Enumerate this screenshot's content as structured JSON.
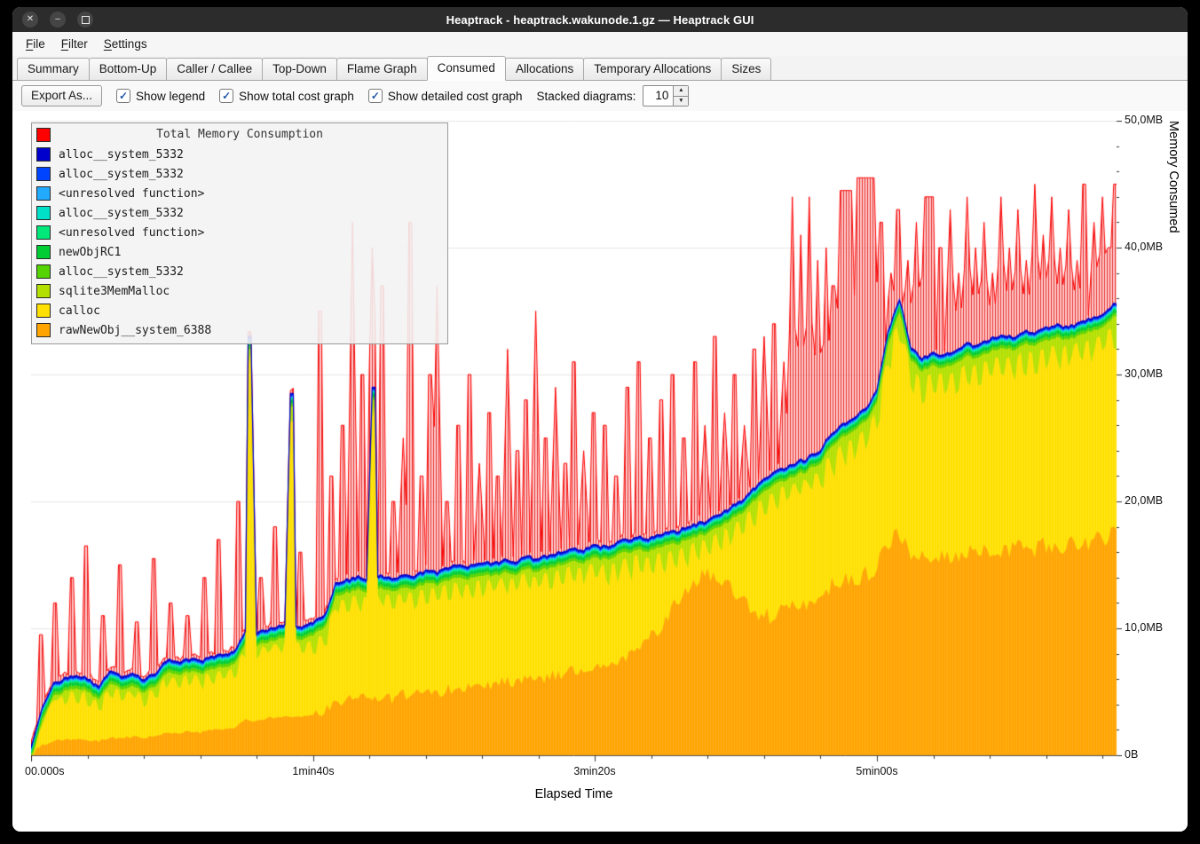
{
  "window": {
    "title": "Heaptrack - heaptrack.wakunode.1.gz — Heaptrack GUI",
    "controls": {
      "close": "✕",
      "minimize": "–"
    }
  },
  "menu": {
    "items": [
      {
        "key": "F",
        "post": "ile"
      },
      {
        "key": "F",
        "post": "ilter"
      },
      {
        "key": "S",
        "post": "ettings"
      }
    ]
  },
  "tabs": {
    "items": [
      "Summary",
      "Bottom-Up",
      "Caller / Callee",
      "Top-Down",
      "Flame Graph",
      "Consumed",
      "Allocations",
      "Temporary Allocations",
      "Sizes"
    ],
    "active": "Consumed"
  },
  "toolbar": {
    "export_label": "Export As...",
    "check_glyph": "✓",
    "spin_up": "▲",
    "spin_down": "▼",
    "checkboxes": [
      {
        "label": "Show legend",
        "checked": true
      },
      {
        "label": "Show total cost graph",
        "checked": true
      },
      {
        "label": "Show detailed cost graph",
        "checked": true
      }
    ],
    "stacked_label": "Stacked diagrams:",
    "stacked_value": "10"
  },
  "chart": {
    "x_label": "Elapsed Time",
    "y_label": "Memory Consumed",
    "y_ticks": [
      {
        "label": "50,0MB",
        "mb": 50
      },
      {
        "label": "40,0MB",
        "mb": 40
      },
      {
        "label": "30,0MB",
        "mb": 30
      },
      {
        "label": "20,0MB",
        "mb": 20
      },
      {
        "label": "10,0MB",
        "mb": 10
      },
      {
        "label": "0B",
        "mb": 0
      }
    ],
    "x_ticks": [
      {
        "label": "00.000s",
        "t": 0
      },
      {
        "label": "1min40s",
        "t": 100
      },
      {
        "label": "3min20s",
        "t": 200
      },
      {
        "label": "5min00s",
        "t": 300
      }
    ],
    "legend": {
      "title": "Total Memory Consumption",
      "title_color": "#ff0000",
      "items": [
        {
          "label": "alloc__system_5332",
          "color": "#0000cc"
        },
        {
          "label": "alloc__system_5332",
          "color": "#0044ff"
        },
        {
          "label": "<unresolved function>",
          "color": "#22aaff"
        },
        {
          "label": "alloc__system_5332",
          "color": "#00e0c8"
        },
        {
          "label": "<unresolved function>",
          "color": "#00e87a"
        },
        {
          "label": "newObjRC1",
          "color": "#00cc33"
        },
        {
          "label": "alloc__system_5332",
          "color": "#55d400"
        },
        {
          "label": "sqlite3MemMalloc",
          "color": "#b4e000"
        },
        {
          "label": "calloc",
          "color": "#ffe000"
        },
        {
          "label": "rawNewObj__system_6388",
          "color": "#ffa400"
        }
      ]
    }
  },
  "chart_data": {
    "type": "area",
    "stacked": true,
    "xlabel": "Elapsed Time",
    "ylabel": "Memory Consumed",
    "ylim_mb": [
      0,
      50
    ],
    "x_max": 385,
    "y_max_mb": 50,
    "x_step": 4,
    "total_color": "#ff0000",
    "sqlite_color": "#b4e000",
    "calloc_color": "#ffe000",
    "rawnewobj_color": "#ffa400",
    "total_baseline_extra_mb": 0.2,
    "thin_bands_top_to_bottom": [
      {
        "name": "alloc__system_5332",
        "color": "#0000cc",
        "mb": 0.12
      },
      {
        "name": "alloc__system_5332",
        "color": "#0044ff",
        "mb": 0.1
      },
      {
        "name": "<unresolved function>",
        "color": "#22aaff",
        "mb": 0.08
      },
      {
        "name": "alloc__system_5332",
        "color": "#00e0c8",
        "mb": 0.08
      },
      {
        "name": "<unresolved function>",
        "color": "#00e87a",
        "mb": 0.12
      },
      {
        "name": "newObjRC1",
        "color": "#00cc33",
        "mb": 0.25
      },
      {
        "name": "alloc__system_5332",
        "color": "#55d400",
        "mb": 0.25
      }
    ],
    "stack_top_mb": [
      0.6,
      3.8,
      5.6,
      6.1,
      6.3,
      6.0,
      5.5,
      6.6,
      6.2,
      6.5,
      6.0,
      6.4,
      7.5,
      7.3,
      7.6,
      7.4,
      7.7,
      7.9,
      8.1,
      9.8,
      9.6,
      9.9,
      10.1,
      10.3,
      10.2,
      10.5,
      10.9,
      13.5,
      13.8,
      14.0,
      13.7,
      14.1,
      13.9,
      14.3,
      14.2,
      14.5,
      14.4,
      14.8,
      15.0,
      14.9,
      15.2,
      15.1,
      15.4,
      15.3,
      15.6,
      15.5,
      15.8,
      16.0,
      16.3,
      16.2,
      16.5,
      16.4,
      16.8,
      17.0,
      17.2,
      17.1,
      17.4,
      17.6,
      17.9,
      18.2,
      18.5,
      18.9,
      19.5,
      20.1,
      20.9,
      21.7,
      22.3,
      22.7,
      23.1,
      23.5,
      24.1,
      25.4,
      26.1,
      26.7,
      27.3,
      28.8,
      33.4,
      36.0,
      32.2,
      31.3,
      31.7,
      31.5,
      32.0,
      32.4,
      32.2,
      32.8,
      33.1,
      32.9,
      33.4,
      33.3,
      33.7,
      33.9,
      33.7,
      34.1,
      34.4,
      34.7,
      35.5
    ],
    "rawnewobj_mb": [
      0.2,
      0.8,
      1.1,
      1.2,
      1.3,
      1.2,
      1.1,
      1.4,
      1.3,
      1.5,
      1.4,
      1.5,
      1.8,
      1.7,
      1.9,
      1.8,
      2.0,
      2.1,
      2.2,
      2.8,
      2.7,
      2.9,
      3.0,
      3.1,
      3.0,
      3.2,
      3.4,
      4.2,
      4.4,
      4.6,
      4.4,
      4.7,
      4.5,
      4.8,
      4.7,
      5.0,
      4.9,
      5.2,
      5.4,
      5.3,
      5.6,
      5.5,
      5.8,
      5.7,
      6.0,
      5.9,
      6.2,
      6.4,
      6.7,
      6.6,
      6.9,
      6.8,
      7.2,
      7.8,
      8.5,
      9.5,
      10.5,
      11.8,
      13.0,
      13.8,
      14.2,
      14.0,
      13.0,
      12.0,
      11.2,
      10.9,
      11.2,
      11.5,
      11.8,
      12.1,
      12.5,
      13.3,
      13.6,
      13.9,
      14.2,
      14.9,
      16.9,
      17.8,
      15.9,
      15.4,
      15.6,
      15.5,
      15.7,
      15.9,
      15.8,
      16.1,
      16.2,
      16.1,
      16.4,
      16.3,
      16.5,
      16.6,
      16.5,
      16.7,
      16.9,
      17.0,
      17.4
    ],
    "sqlite_tooth_base_mb": [
      0.4,
      0.4,
      0.4,
      1.0,
      1.0,
      1.0,
      1.0,
      1.0,
      1.0,
      1.0,
      1.0,
      1.0,
      1.0,
      1.0,
      1.0,
      1.0,
      1.0,
      1.0,
      1.0,
      1.0,
      1.0,
      1.0,
      1.0,
      1.0,
      1.0,
      1.4,
      1.4,
      1.4,
      1.4,
      1.4,
      1.4,
      1.4,
      1.4,
      1.4,
      1.4,
      1.4,
      1.4,
      1.4,
      1.4,
      1.4,
      1.4,
      1.4,
      1.4,
      1.4,
      1.4,
      1.4,
      1.4,
      1.4,
      1.4,
      1.4,
      1.8,
      1.8,
      1.8,
      1.8,
      1.8,
      1.8,
      1.8,
      1.8,
      1.8,
      1.8,
      1.8,
      1.8,
      1.8,
      1.8,
      1.8,
      1.8,
      1.8,
      1.8,
      1.8,
      1.8,
      2.1,
      2.1,
      2.1,
      2.1,
      2.1,
      2.1,
      2.1,
      2.1,
      2.1,
      2.1,
      2.1,
      2.1,
      2.1,
      2.1,
      2.1,
      2.1,
      2.1,
      2.1,
      2.1,
      2.1,
      2.1,
      2.1,
      2.1,
      2.1,
      2.1,
      2.1,
      2.1
    ],
    "stack_spikes": [
      [
        77,
        78.5,
        33
      ],
      [
        91.5,
        93,
        28.5
      ],
      [
        120.5,
        122,
        29
      ]
    ],
    "total_spikes": [
      [
        3,
        4,
        9.5
      ],
      [
        8,
        9,
        12
      ],
      [
        14,
        15,
        14
      ],
      [
        19,
        20,
        16.5
      ],
      [
        25,
        26,
        11
      ],
      [
        31,
        32,
        15
      ],
      [
        37,
        38,
        10.5
      ],
      [
        43,
        44,
        15.5
      ],
      [
        49,
        50,
        12
      ],
      [
        55,
        56,
        11
      ],
      [
        61,
        62,
        14
      ],
      [
        66,
        67,
        17
      ],
      [
        73,
        74,
        20
      ],
      [
        81,
        82,
        14
      ],
      [
        86,
        87,
        18
      ],
      [
        95,
        96,
        16
      ],
      [
        102,
        103,
        35
      ],
      [
        106,
        107,
        22
      ],
      [
        110,
        111,
        26
      ],
      [
        113.5,
        114.5,
        42
      ],
      [
        117,
        118,
        30
      ],
      [
        120.5,
        121.5,
        40
      ],
      [
        124,
        125,
        37
      ],
      [
        128,
        129,
        20
      ],
      [
        131.5,
        132.5,
        25
      ],
      [
        134,
        135,
        42
      ],
      [
        138,
        139,
        22
      ],
      [
        141,
        142,
        30
      ],
      [
        143.5,
        144.5,
        37
      ],
      [
        147,
        148,
        20
      ],
      [
        151,
        152,
        26
      ],
      [
        155,
        156,
        30
      ],
      [
        158.5,
        159.5,
        23
      ],
      [
        162,
        163,
        27
      ],
      [
        165,
        166,
        22
      ],
      [
        168.5,
        169.5,
        32
      ],
      [
        172,
        173,
        24
      ],
      [
        175,
        176,
        28
      ],
      [
        178.5,
        179.5,
        35
      ],
      [
        182,
        183,
        25
      ],
      [
        185.5,
        186.5,
        29
      ],
      [
        189,
        190,
        23
      ],
      [
        192,
        193,
        31
      ],
      [
        195.5,
        196.5,
        24
      ],
      [
        199,
        200,
        27
      ],
      [
        203,
        204,
        26
      ],
      [
        207,
        208,
        22
      ],
      [
        211,
        212,
        29
      ],
      [
        215,
        216,
        31
      ],
      [
        219,
        220,
        25
      ],
      [
        223,
        224,
        28
      ],
      [
        227,
        228,
        30
      ],
      [
        231,
        232,
        25
      ],
      [
        235,
        236,
        31
      ],
      [
        238.5,
        239.5,
        26
      ],
      [
        242,
        243,
        33
      ],
      [
        245.5,
        246.5,
        27
      ],
      [
        249,
        250,
        30
      ],
      [
        252.5,
        253.5,
        26
      ],
      [
        256,
        257,
        32
      ],
      [
        259.5,
        260.5,
        33
      ],
      [
        263,
        264,
        34
      ],
      [
        266.5,
        267.5,
        31
      ],
      [
        269.5,
        270.5,
        44
      ],
      [
        272.5,
        273.5,
        41
      ],
      [
        275.5,
        276.5,
        44
      ],
      [
        278.5,
        279.5,
        39
      ],
      [
        281.5,
        282.5,
        40
      ],
      [
        284,
        285,
        37
      ],
      [
        286.5,
        291,
        44.5
      ],
      [
        292.5,
        299.5,
        45.5
      ],
      [
        301,
        302,
        42
      ],
      [
        304.5,
        305.5,
        38
      ],
      [
        307,
        308,
        43
      ],
      [
        310.5,
        311.5,
        39
      ],
      [
        313.5,
        314.5,
        42
      ],
      [
        316.5,
        320,
        44
      ],
      [
        322,
        323,
        40
      ],
      [
        325.5,
        326.5,
        43
      ],
      [
        328.5,
        329.5,
        38
      ],
      [
        331.5,
        332.5,
        44
      ],
      [
        334.5,
        335.5,
        40
      ],
      [
        337.5,
        338.5,
        42
      ],
      [
        340.5,
        341.5,
        38
      ],
      [
        343.5,
        344.5,
        44
      ],
      [
        346.5,
        347.5,
        40
      ],
      [
        349.5,
        350.5,
        43
      ],
      [
        352.5,
        353.5,
        39
      ],
      [
        355.5,
        356.5,
        45
      ],
      [
        358.5,
        359.5,
        41
      ],
      [
        361.5,
        362.5,
        44
      ],
      [
        364.5,
        365.5,
        40
      ],
      [
        367.5,
        368.5,
        43
      ],
      [
        370.5,
        371.5,
        39
      ],
      [
        373,
        374,
        45
      ],
      [
        376.5,
        377.5,
        42
      ],
      [
        379.5,
        380.5,
        44
      ],
      [
        382,
        383,
        40
      ],
      [
        384,
        385,
        45
      ]
    ]
  }
}
